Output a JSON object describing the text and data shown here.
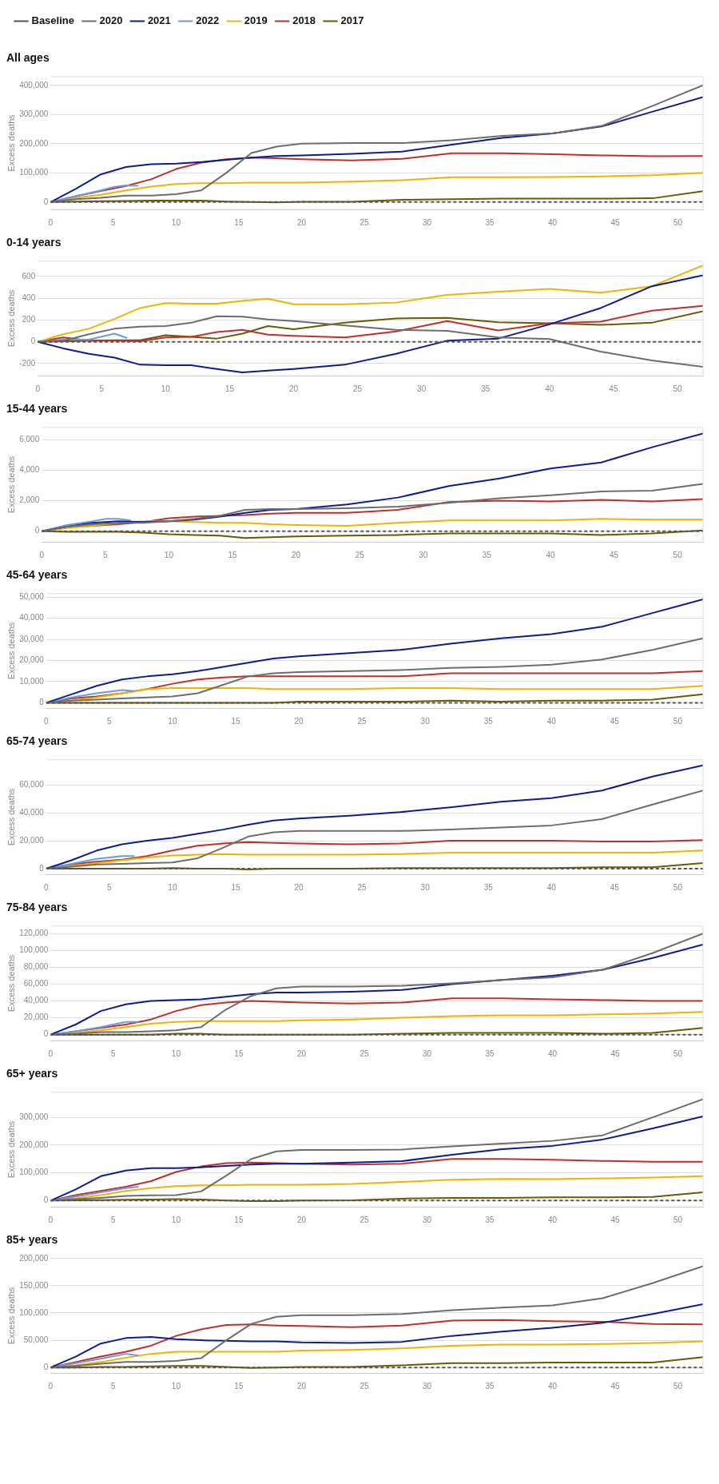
{
  "chart_data": [
    {
      "type": "line",
      "title": "All ages",
      "ylabel": "Excess deaths",
      "legend": "top left",
      "grid": "y",
      "marker": "none",
      "xlim": [
        0,
        52
      ],
      "xticks": [
        0,
        5,
        10,
        15,
        20,
        25,
        30,
        35,
        40,
        45,
        50
      ],
      "ylim": [
        -25000,
        430000
      ],
      "yticks": [
        0,
        {
          "value": 100000,
          "label": "100,000"
        },
        {
          "value": 200000,
          "label": "200,000"
        },
        {
          "value": 300000,
          "label": "300,000"
        },
        {
          "value": 400000,
          "label": "400,000"
        }
      ],
      "x": [
        0,
        2,
        4,
        6,
        8,
        10,
        12,
        14,
        16,
        18,
        20,
        24,
        28,
        32,
        36,
        40,
        44,
        48,
        52
      ],
      "series": [
        {
          "name": "Baseline",
          "color": "#555555",
          "line_style": "dashed",
          "x": [
            0,
            52
          ],
          "values": [
            0,
            0
          ]
        },
        {
          "name": "2020",
          "color": "#6d6d6d",
          "values": [
            0,
            10000,
            15000,
            22000,
            22000,
            27000,
            40000,
            100000,
            168000,
            190000,
            200000,
            202000,
            202000,
            212000,
            227000,
            235000,
            262000,
            330000,
            400000
          ]
        },
        {
          "name": "2021",
          "color": "#0a1f8f",
          "values": [
            0,
            45000,
            95000,
            120000,
            130000,
            132000,
            137000,
            145000,
            152000,
            158000,
            160000,
            165000,
            173000,
            197000,
            220000,
            235000,
            260000,
            310000,
            360000
          ]
        },
        {
          "name": "2022",
          "color": "#6b9be0",
          "x": [
            0,
            2,
            4,
            5,
            6,
            7
          ],
          "values": [
            0,
            20000,
            40000,
            52000,
            57000,
            56000
          ]
        },
        {
          "name": "2019",
          "color": "#f0b400",
          "values": [
            0,
            15000,
            25000,
            40000,
            53000,
            62000,
            65000,
            65000,
            67000,
            67000,
            67000,
            70000,
            75000,
            85000,
            85000,
            86000,
            88000,
            92000,
            100000
          ]
        },
        {
          "name": "2018",
          "color": "#c0302a",
          "values": [
            0,
            20000,
            38000,
            55000,
            78000,
            113000,
            135000,
            147000,
            152000,
            150000,
            147000,
            143000,
            148000,
            167000,
            167000,
            164000,
            160000,
            157000,
            158000
          ]
        },
        {
          "name": "2017",
          "color": "#6b5a00",
          "values": [
            0,
            2000,
            3000,
            4000,
            5000,
            5000,
            5000,
            2000,
            0,
            -1000,
            1000,
            1000,
            8000,
            10000,
            12000,
            12000,
            12000,
            13000,
            37000
          ]
        }
      ]
    },
    {
      "type": "line",
      "title": "0-14 years",
      "ylabel": "Excess deaths",
      "grid": "y",
      "marker": "none",
      "xlim": [
        0,
        52
      ],
      "xticks": [
        0,
        5,
        10,
        15,
        20,
        25,
        30,
        35,
        40,
        45,
        50
      ],
      "ylim": [
        -310,
        740
      ],
      "yticks": [
        -200,
        0,
        200,
        400,
        600
      ],
      "x": [
        0,
        2,
        4,
        6,
        8,
        10,
        12,
        14,
        16,
        18,
        20,
        24,
        28,
        32,
        36,
        40,
        44,
        48,
        52
      ],
      "series": [
        {
          "color": "#555555",
          "line_style": "dashed",
          "x": [
            0,
            52
          ],
          "values": [
            0,
            0
          ]
        },
        {
          "color": "#6d6d6d",
          "values": [
            0,
            10,
            70,
            120,
            140,
            145,
            175,
            235,
            230,
            205,
            190,
            150,
            110,
            100,
            40,
            25,
            -90,
            -170,
            -230
          ]
        },
        {
          "color": "#0a1f8f",
          "values": [
            0,
            -60,
            -110,
            -145,
            -210,
            -215,
            -215,
            -250,
            -280,
            -265,
            -250,
            -210,
            -110,
            10,
            30,
            160,
            310,
            510,
            610
          ]
        },
        {
          "color": "#6b9be0",
          "x": [
            0,
            2,
            4,
            6,
            7
          ],
          "values": [
            0,
            20,
            20,
            75,
            35
          ]
        },
        {
          "color": "#f0b400",
          "values": [
            0,
            70,
            120,
            210,
            310,
            355,
            350,
            350,
            375,
            395,
            345,
            345,
            360,
            430,
            460,
            485,
            450,
            510,
            700
          ]
        },
        {
          "color": "#c0302a",
          "values": [
            0,
            40,
            10,
            10,
            5,
            40,
            45,
            90,
            110,
            65,
            55,
            40,
            95,
            190,
            105,
            170,
            185,
            285,
            330
          ]
        },
        {
          "color": "#6b5a00",
          "values": [
            0,
            5,
            10,
            15,
            15,
            60,
            45,
            30,
            75,
            145,
            115,
            175,
            215,
            220,
            180,
            170,
            155,
            175,
            280
          ]
        }
      ]
    },
    {
      "type": "line",
      "title": "15-44 years",
      "ylabel": "Excess deaths",
      "grid": "y",
      "marker": "none",
      "xlim": [
        0,
        52
      ],
      "xticks": [
        0,
        5,
        10,
        15,
        20,
        25,
        30,
        35,
        40,
        45,
        50
      ],
      "ylim": [
        -700,
        6800
      ],
      "yticks": [
        0,
        {
          "value": 2000,
          "label": "2,000"
        },
        {
          "value": 4000,
          "label": "4,000"
        },
        {
          "value": 6000,
          "label": "6,000"
        }
      ],
      "x": [
        0,
        2,
        4,
        6,
        8,
        10,
        12,
        14,
        16,
        18,
        20,
        24,
        28,
        32,
        36,
        40,
        44,
        48,
        52
      ],
      "series": [
        {
          "color": "#555555",
          "line_style": "dashed",
          "x": [
            0,
            52
          ],
          "values": [
            0,
            0
          ]
        },
        {
          "color": "#6d6d6d",
          "values": [
            0,
            300,
            450,
            550,
            550,
            650,
            800,
            1000,
            1400,
            1450,
            1450,
            1500,
            1600,
            1850,
            2150,
            2350,
            2600,
            2650,
            3100
          ]
        },
        {
          "color": "#0a1f8f",
          "values": [
            0,
            300,
            550,
            650,
            600,
            650,
            750,
            950,
            1200,
            1400,
            1450,
            1750,
            2200,
            2950,
            3450,
            4100,
            4500,
            5500,
            6400
          ]
        },
        {
          "color": "#6b9be0",
          "x": [
            0,
            2,
            4,
            5,
            6,
            7
          ],
          "values": [
            0,
            400,
            650,
            800,
            800,
            700
          ]
        },
        {
          "color": "#f0b400",
          "values": [
            0,
            200,
            350,
            550,
            650,
            650,
            600,
            550,
            550,
            450,
            400,
            350,
            550,
            700,
            700,
            700,
            800,
            750,
            750
          ]
        },
        {
          "color": "#c0302a",
          "values": [
            0,
            250,
            350,
            450,
            600,
            850,
            950,
            1000,
            1050,
            1150,
            1200,
            1200,
            1400,
            1900,
            2000,
            1950,
            2050,
            1950,
            2100
          ]
        },
        {
          "color": "#6b5a00",
          "values": [
            0,
            -50,
            -50,
            -50,
            -100,
            -200,
            -250,
            -300,
            -450,
            -400,
            -350,
            -300,
            -250,
            -150,
            -150,
            -150,
            -250,
            -150,
            50
          ]
        }
      ]
    },
    {
      "type": "line",
      "title": "45-64 years",
      "ylabel": "Excess deaths",
      "grid": "y",
      "marker": "none",
      "xlim": [
        0,
        52
      ],
      "xticks": [
        0,
        5,
        10,
        15,
        20,
        25,
        30,
        35,
        40,
        45,
        50
      ],
      "ylim": [
        -2500,
        51700
      ],
      "yticks": [
        0,
        {
          "value": 10000,
          "label": "10,000"
        },
        {
          "value": 20000,
          "label": "20,000"
        },
        {
          "value": 30000,
          "label": "30,000"
        },
        {
          "value": 40000,
          "label": "40,000"
        },
        {
          "value": 50000,
          "label": "50,000"
        }
      ],
      "x": [
        0,
        2,
        4,
        6,
        8,
        10,
        12,
        14,
        16,
        18,
        20,
        24,
        28,
        32,
        36,
        40,
        44,
        48,
        52
      ],
      "series": [
        {
          "color": "#555555",
          "line_style": "dashed",
          "x": [
            0,
            52
          ],
          "values": [
            0,
            0
          ]
        },
        {
          "color": "#6d6d6d",
          "values": [
            0,
            1000,
            1500,
            2000,
            2500,
            3000,
            4500,
            8500,
            12500,
            14000,
            14500,
            15000,
            15500,
            16500,
            17000,
            18000,
            20500,
            25000,
            30500
          ]
        },
        {
          "color": "#0a1f8f",
          "values": [
            0,
            4000,
            8000,
            11000,
            12500,
            13500,
            15000,
            17000,
            19000,
            21000,
            22000,
            23500,
            25000,
            28000,
            30500,
            32500,
            36000,
            42500,
            49000
          ]
        },
        {
          "color": "#6b9be0",
          "x": [
            0,
            2,
            4,
            6,
            7
          ],
          "values": [
            0,
            2500,
            4500,
            6000,
            5500
          ]
        },
        {
          "color": "#f0b400",
          "values": [
            0,
            1000,
            2500,
            4500,
            6500,
            7000,
            7000,
            7000,
            7000,
            6500,
            6500,
            6500,
            7000,
            7000,
            6500,
            6500,
            6500,
            6500,
            8000
          ]
        },
        {
          "color": "#c0302a",
          "values": [
            0,
            2000,
            3000,
            4500,
            6500,
            9000,
            11000,
            12000,
            12500,
            12500,
            12500,
            12500,
            12500,
            14000,
            14000,
            14000,
            14000,
            14000,
            15000
          ]
        },
        {
          "color": "#6b5a00",
          "values": [
            0,
            0,
            0,
            0,
            0,
            0,
            0,
            0,
            0,
            0,
            500,
            500,
            500,
            1000,
            500,
            1000,
            1000,
            1500,
            4000
          ]
        }
      ]
    },
    {
      "type": "line",
      "title": "65-74 years",
      "ylabel": "Excess deaths",
      "grid": "y",
      "marker": "none",
      "xlim": [
        0,
        52
      ],
      "xticks": [
        0,
        5,
        10,
        15,
        20,
        25,
        30,
        35,
        40,
        45,
        50
      ],
      "ylim": [
        -4000,
        78000
      ],
      "yticks": [
        0,
        {
          "value": 20000,
          "label": "20,000"
        },
        {
          "value": 40000,
          "label": "40,000"
        },
        {
          "value": 60000,
          "label": "60,000"
        }
      ],
      "x": [
        0,
        2,
        4,
        6,
        8,
        10,
        12,
        14,
        16,
        18,
        20,
        24,
        28,
        32,
        36,
        40,
        44,
        48,
        52
      ],
      "series": [
        {
          "color": "#555555",
          "line_style": "dashed",
          "x": [
            0,
            52
          ],
          "values": [
            0,
            0
          ]
        },
        {
          "color": "#6d6d6d",
          "values": [
            0,
            1500,
            3000,
            3500,
            4000,
            4500,
            7500,
            15000,
            23000,
            26000,
            27000,
            27000,
            27000,
            28000,
            29500,
            31000,
            35500,
            46000,
            56000
          ]
        },
        {
          "color": "#0a1f8f",
          "values": [
            0,
            6000,
            13000,
            17500,
            20000,
            22000,
            25000,
            28000,
            31500,
            34500,
            36000,
            38000,
            40500,
            44000,
            48000,
            50500,
            56000,
            66000,
            74000
          ]
        },
        {
          "color": "#6b9be0",
          "x": [
            0,
            2,
            4,
            6,
            7
          ],
          "values": [
            0,
            3500,
            7000,
            9000,
            9000
          ]
        },
        {
          "color": "#f0b400",
          "values": [
            0,
            2000,
            4000,
            6000,
            8000,
            9500,
            10000,
            10500,
            10000,
            10000,
            10000,
            10000,
            10500,
            11500,
            11500,
            11500,
            11500,
            11500,
            13000
          ]
        },
        {
          "color": "#c0302a",
          "values": [
            0,
            3000,
            5000,
            6500,
            9000,
            13000,
            16500,
            18000,
            19000,
            18500,
            18000,
            17500,
            18000,
            20000,
            20000,
            20000,
            19500,
            19500,
            20500
          ]
        },
        {
          "color": "#6b5a00",
          "values": [
            0,
            0,
            0,
            0,
            0,
            500,
            0,
            0,
            -500,
            0,
            0,
            0,
            500,
            500,
            500,
            500,
            1000,
            1000,
            4000
          ]
        }
      ]
    },
    {
      "type": "line",
      "title": "75-84 years",
      "ylabel": "Excess deaths",
      "grid": "y",
      "marker": "none",
      "xlim": [
        0,
        52
      ],
      "xticks": [
        0,
        5,
        10,
        15,
        20,
        25,
        30,
        35,
        40,
        45,
        50
      ],
      "ylim": [
        -7000,
        129000
      ],
      "yticks": [
        0,
        {
          "value": 20000,
          "label": "20,000"
        },
        {
          "value": 40000,
          "label": "40,000"
        },
        {
          "value": 60000,
          "label": "60,000"
        },
        {
          "value": 80000,
          "label": "80,000"
        },
        {
          "value": 100000,
          "label": "100,000"
        },
        {
          "value": 120000,
          "label": "120,000"
        }
      ],
      "x": [
        0,
        2,
        4,
        6,
        8,
        10,
        12,
        14,
        16,
        18,
        20,
        24,
        28,
        32,
        36,
        40,
        44,
        48,
        52
      ],
      "series": [
        {
          "color": "#555555",
          "line_style": "dashed",
          "x": [
            0,
            52
          ],
          "values": [
            0,
            0
          ]
        },
        {
          "color": "#6d6d6d",
          "values": [
            0,
            1000,
            3000,
            3000,
            4000,
            5000,
            9000,
            30000,
            46000,
            55000,
            57000,
            57000,
            58000,
            61000,
            65000,
            68000,
            77000,
            97000,
            120000
          ]
        },
        {
          "color": "#0a1f8f",
          "values": [
            0,
            12000,
            28000,
            36000,
            40000,
            41000,
            42000,
            45000,
            48000,
            50000,
            50000,
            51000,
            53000,
            60000,
            65000,
            70000,
            77000,
            91000,
            107000
          ]
        },
        {
          "color": "#6b9be0",
          "x": [
            0,
            2,
            4,
            6,
            7
          ],
          "values": [
            0,
            4000,
            9000,
            15000,
            15000
          ]
        },
        {
          "color": "#f0b400",
          "values": [
            0,
            2000,
            5000,
            9000,
            13000,
            15000,
            16000,
            16000,
            16000,
            16000,
            17000,
            18000,
            20000,
            22000,
            23000,
            23000,
            24000,
            25000,
            27000
          ]
        },
        {
          "color": "#c0302a",
          "values": [
            0,
            4000,
            8000,
            12000,
            18000,
            28000,
            35000,
            38000,
            40000,
            39000,
            38000,
            37000,
            38000,
            43000,
            43000,
            42000,
            41000,
            40000,
            40000
          ]
        },
        {
          "color": "#6b5a00",
          "values": [
            0,
            0,
            0,
            0,
            0,
            1000,
            1000,
            0,
            0,
            0,
            0,
            0,
            1000,
            2000,
            2000,
            2000,
            1000,
            2000,
            8000
          ]
        }
      ]
    },
    {
      "type": "line",
      "title": "65+ years",
      "ylabel": "Excess deaths",
      "grid": "y",
      "marker": "none",
      "xlim": [
        0,
        52
      ],
      "xticks": [
        0,
        5,
        10,
        15,
        20,
        25,
        30,
        35,
        40,
        45,
        50
      ],
      "ylim": [
        -22000,
        390000
      ],
      "yticks": [
        0,
        {
          "value": 100000,
          "label": "100,000"
        },
        {
          "value": 200000,
          "label": "200,000"
        },
        {
          "value": 300000,
          "label": "300,000"
        }
      ],
      "x": [
        0,
        2,
        4,
        6,
        8,
        10,
        12,
        14,
        16,
        18,
        20,
        24,
        28,
        32,
        36,
        40,
        44,
        48,
        52
      ],
      "series": [
        {
          "color": "#555555",
          "line_style": "dashed",
          "x": [
            0,
            52
          ],
          "values": [
            0,
            0
          ]
        },
        {
          "color": "#6d6d6d",
          "values": [
            0,
            5000,
            10000,
            17000,
            19000,
            20000,
            33000,
            90000,
            150000,
            177000,
            182000,
            182000,
            184000,
            195000,
            205000,
            215000,
            235000,
            300000,
            365000
          ]
        },
        {
          "color": "#0a1f8f",
          "values": [
            0,
            40000,
            88000,
            108000,
            117000,
            117000,
            120000,
            125000,
            130000,
            133000,
            133000,
            137000,
            142000,
            165000,
            185000,
            197000,
            220000,
            260000,
            303000
          ]
        },
        {
          "color": "#6b9be0",
          "x": [
            0,
            2,
            4,
            6,
            7
          ],
          "values": [
            0,
            15000,
            30000,
            45000,
            50000
          ]
        },
        {
          "color": "#f0b400",
          "values": [
            0,
            8000,
            20000,
            35000,
            45000,
            52000,
            55000,
            55000,
            57000,
            57000,
            57000,
            60000,
            67000,
            75000,
            78000,
            77000,
            80000,
            83000,
            88000
          ]
        },
        {
          "color": "#c0302a",
          "values": [
            0,
            20000,
            35000,
            50000,
            70000,
            103000,
            123000,
            135000,
            137000,
            135000,
            133000,
            130000,
            133000,
            150000,
            150000,
            147000,
            143000,
            140000,
            140000
          ]
        },
        {
          "color": "#6b5a00",
          "values": [
            0,
            1000,
            2000,
            3000,
            4000,
            5000,
            4000,
            0,
            -2000,
            -2000,
            0,
            1000,
            7000,
            10000,
            10000,
            12000,
            12000,
            13000,
            30000
          ]
        }
      ]
    },
    {
      "type": "line",
      "title": "85+ years",
      "ylabel": "Excess deaths",
      "grid": "y",
      "marker": "none",
      "xlim": [
        0,
        52
      ],
      "xticks": [
        0,
        5,
        10,
        15,
        20,
        25,
        30,
        35,
        40,
        45,
        50
      ],
      "ylim": [
        -10000,
        200000
      ],
      "yticks": [
        0,
        {
          "value": 50000,
          "label": "50,000"
        },
        {
          "value": 100000,
          "label": "100,000"
        },
        {
          "value": 150000,
          "label": "150,000"
        },
        {
          "value": 200000,
          "label": "200,000"
        }
      ],
      "x": [
        0,
        2,
        4,
        6,
        8,
        10,
        12,
        14,
        16,
        18,
        20,
        24,
        28,
        32,
        36,
        40,
        44,
        48,
        52
      ],
      "series": [
        {
          "color": "#555555",
          "line_style": "dashed",
          "x": [
            0,
            52
          ],
          "values": [
            0,
            0
          ]
        },
        {
          "color": "#6d6d6d",
          "values": [
            0,
            3000,
            7000,
            10000,
            10000,
            12000,
            17000,
            50000,
            80000,
            93000,
            96000,
            96000,
            98000,
            105000,
            110000,
            114000,
            127000,
            155000,
            186000
          ]
        },
        {
          "color": "#0a1f8f",
          "values": [
            0,
            20000,
            44000,
            54000,
            56000,
            52000,
            50000,
            49000,
            48000,
            48000,
            46000,
            45000,
            47000,
            58000,
            66000,
            73000,
            82000,
            98000,
            116000
          ]
        },
        {
          "color": "#6b9be0",
          "x": [
            0,
            2,
            4,
            6,
            7
          ],
          "values": [
            0,
            8000,
            16000,
            25000,
            22000
          ]
        },
        {
          "color": "#f0b400",
          "values": [
            0,
            4000,
            10000,
            18000,
            25000,
            29000,
            29000,
            29000,
            29000,
            29000,
            31000,
            32000,
            35000,
            40000,
            42000,
            42000,
            43000,
            45000,
            48000
          ]
        },
        {
          "color": "#c0302a",
          "values": [
            0,
            10000,
            20000,
            29000,
            40000,
            58000,
            70000,
            78000,
            79000,
            77000,
            76000,
            74000,
            77000,
            86000,
            87000,
            85000,
            84000,
            80000,
            79000
          ]
        },
        {
          "color": "#6b5a00",
          "values": [
            0,
            0,
            1000,
            1000,
            2000,
            3000,
            3000,
            1000,
            -1000,
            0,
            1000,
            1000,
            4000,
            8000,
            8000,
            9000,
            9000,
            9000,
            19000
          ]
        }
      ]
    }
  ]
}
